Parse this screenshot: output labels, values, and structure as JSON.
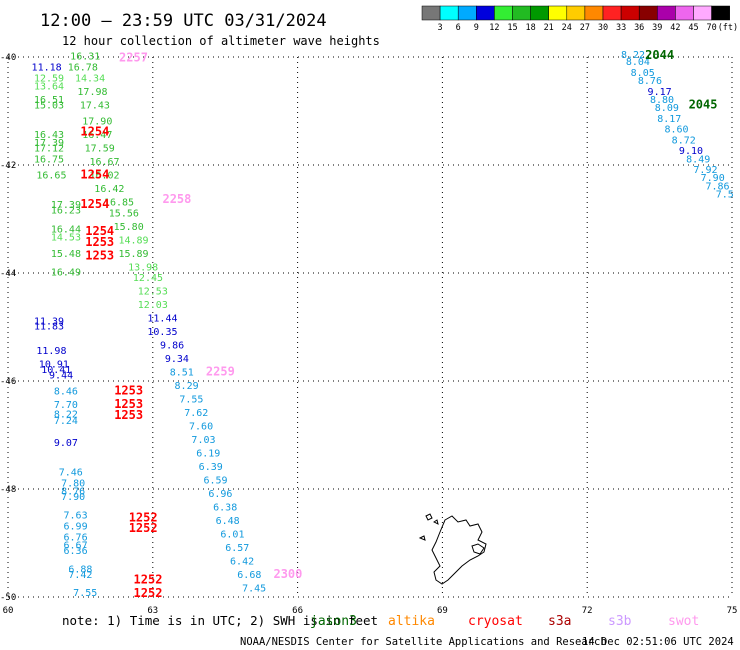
{
  "header": {
    "title": "12:00 — 23:59 UTC 03/31/2024",
    "subtitle": "12 hour collection of altimeter wave heights"
  },
  "colorbar": {
    "labels": [
      "3",
      "6",
      "9",
      "12",
      "15",
      "18",
      "21",
      "24",
      "27",
      "30",
      "33",
      "36",
      "39",
      "42",
      "45",
      "70"
    ],
    "unit": "(ft)",
    "colors": [
      "#777777",
      "#00ffff",
      "#00aaff",
      "#0000dd",
      "#33ee33",
      "#22bb22",
      "#009900",
      "#ffff00",
      "#ffcc00",
      "#ff8800",
      "#ff2222",
      "#cc0000",
      "#880000",
      "#aa00aa",
      "#ee66ee",
      "#ffaaff",
      "#000000"
    ]
  },
  "note": {
    "text": "note: 1) Time is in UTC; 2) SWH is in feet",
    "satellites": [
      {
        "name": "jason3",
        "color": "#006600"
      },
      {
        "name": "altika",
        "color": "#ff8800"
      },
      {
        "name": "cryosat",
        "color": "#ff0000"
      },
      {
        "name": "s3a",
        "color": "#aa0000"
      },
      {
        "name": "s3b",
        "color": "#cc99ff"
      },
      {
        "name": "swot",
        "color": "#ff99ee"
      }
    ]
  },
  "footer": {
    "center": "NOAA/NESDIS Center for Satellite Applications and Research",
    "stamp": "14 Dec 02:51:06 UTC 2024"
  },
  "chart_data": {
    "type": "scatter",
    "x_axis": {
      "min": 60,
      "max": 75,
      "ticks": [
        60,
        63,
        66,
        69,
        72,
        75
      ],
      "tick_labels": [
        "60",
        "63",
        "66",
        "69",
        "72",
        "75"
      ]
    },
    "y_axis": {
      "min": -50,
      "max": -40,
      "ticks": [
        -40,
        -42,
        -44,
        -46,
        -48,
        -50
      ],
      "tick_labels": [
        "-40",
        "-42",
        "-44",
        "-46",
        "-48",
        "-50"
      ]
    },
    "grid": "dotted",
    "color_scale": [
      {
        "max": 3,
        "color": "#777777"
      },
      {
        "max": 6,
        "color": "#00aadd"
      },
      {
        "max": 9,
        "color": "#1199dd"
      },
      {
        "max": 12,
        "color": "#0000cc"
      },
      {
        "max": 15,
        "color": "#55dd55"
      },
      {
        "max": 18,
        "color": "#33bb33"
      },
      {
        "max": 21,
        "color": "#009900"
      }
    ],
    "time_labels": [
      {
        "label": "2257",
        "lon": 62.6,
        "lat": -40.08,
        "sat": "swot"
      },
      {
        "label": "2258",
        "lon": 63.5,
        "lat": -42.7,
        "sat": "swot"
      },
      {
        "label": "2259",
        "lon": 64.4,
        "lat": -45.9,
        "sat": "swot"
      },
      {
        "label": "2300",
        "lon": 65.8,
        "lat": -49.65,
        "sat": "swot"
      },
      {
        "label": "2044",
        "lon": 73.5,
        "lat": -40.04,
        "sat": "jason3"
      },
      {
        "label": "2045",
        "lon": 74.4,
        "lat": -40.95,
        "sat": "jason3"
      },
      {
        "label": "1254",
        "lon": 61.8,
        "lat": -41.45,
        "sat": "cryosat"
      },
      {
        "label": "1254",
        "lon": 61.8,
        "lat": -42.25,
        "sat": "cryosat"
      },
      {
        "label": "1254",
        "lon": 61.8,
        "lat": -42.8,
        "sat": "cryosat"
      },
      {
        "label": "1254",
        "lon": 61.9,
        "lat": -43.3,
        "sat": "cryosat"
      },
      {
        "label": "1253",
        "lon": 61.9,
        "lat": -43.5,
        "sat": "cryosat"
      },
      {
        "label": "1253",
        "lon": 61.9,
        "lat": -43.75,
        "sat": "cryosat"
      },
      {
        "label": "1253",
        "lon": 62.5,
        "lat": -46.25,
        "sat": "cryosat"
      },
      {
        "label": "1253",
        "lon": 62.5,
        "lat": -46.5,
        "sat": "cryosat"
      },
      {
        "label": "1253",
        "lon": 62.5,
        "lat": -46.7,
        "sat": "cryosat"
      },
      {
        "label": "1252",
        "lon": 62.8,
        "lat": -48.6,
        "sat": "cryosat"
      },
      {
        "label": "1252",
        "lon": 62.8,
        "lat": -48.8,
        "sat": "cryosat"
      },
      {
        "label": "1252",
        "lon": 62.9,
        "lat": -49.75,
        "sat": "cryosat"
      },
      {
        "label": "1252",
        "lon": 62.9,
        "lat": -50.0,
        "sat": "cryosat"
      }
    ],
    "swh_points": [
      {
        "v": "16.31",
        "lon": 61.6,
        "lat": -40.05
      },
      {
        "v": "11.18",
        "lon": 60.8,
        "lat": -40.25
      },
      {
        "v": "16.78",
        "lon": 61.55,
        "lat": -40.25
      },
      {
        "v": "12.59",
        "lon": 60.85,
        "lat": -40.45
      },
      {
        "v": "14.34",
        "lon": 61.7,
        "lat": -40.45
      },
      {
        "v": "13.64",
        "lon": 60.85,
        "lat": -40.6
      },
      {
        "v": "17.98",
        "lon": 61.75,
        "lat": -40.7
      },
      {
        "v": "16.51",
        "lon": 60.85,
        "lat": -40.85
      },
      {
        "v": "15.03",
        "lon": 60.85,
        "lat": -40.95
      },
      {
        "v": "17.43",
        "lon": 61.8,
        "lat": -40.95
      },
      {
        "v": "17.90",
        "lon": 61.85,
        "lat": -41.25
      },
      {
        "v": "16.43",
        "lon": 60.85,
        "lat": -41.5
      },
      {
        "v": "16.47",
        "lon": 61.85,
        "lat": -41.5
      },
      {
        "v": "17.39",
        "lon": 60.85,
        "lat": -41.65
      },
      {
        "v": "17.12",
        "lon": 60.85,
        "lat": -41.75
      },
      {
        "v": "17.59",
        "lon": 61.9,
        "lat": -41.75
      },
      {
        "v": "16.75",
        "lon": 60.85,
        "lat": -41.95
      },
      {
        "v": "16.67",
        "lon": 62.0,
        "lat": -42.0
      },
      {
        "v": "16.65",
        "lon": 60.9,
        "lat": -42.25
      },
      {
        "v": "16.02",
        "lon": 62.0,
        "lat": -42.25
      },
      {
        "v": "16.42",
        "lon": 62.1,
        "lat": -42.5
      },
      {
        "v": "17.39",
        "lon": 61.2,
        "lat": -42.8
      },
      {
        "v": "16.85",
        "lon": 62.3,
        "lat": -42.75
      },
      {
        "v": "16.23",
        "lon": 61.2,
        "lat": -42.9
      },
      {
        "v": "15.56",
        "lon": 62.4,
        "lat": -42.95
      },
      {
        "v": "15.80",
        "lon": 62.5,
        "lat": -43.2
      },
      {
        "v": "16.44",
        "lon": 61.2,
        "lat": -43.25
      },
      {
        "v": "14.53",
        "lon": 61.2,
        "lat": -43.4
      },
      {
        "v": "14.89",
        "lon": 62.6,
        "lat": -43.45
      },
      {
        "v": "15.48",
        "lon": 61.2,
        "lat": -43.7
      },
      {
        "v": "15.89",
        "lon": 62.6,
        "lat": -43.7
      },
      {
        "v": "13.98",
        "lon": 62.8,
        "lat": -43.95
      },
      {
        "v": "16.49",
        "lon": 61.2,
        "lat": -44.05
      },
      {
        "v": "12.45",
        "lon": 62.9,
        "lat": -44.15
      },
      {
        "v": "12.53",
        "lon": 63.0,
        "lat": -44.4
      },
      {
        "v": "12.03",
        "lon": 63.0,
        "lat": -44.65
      },
      {
        "v": "11.44",
        "lon": 63.2,
        "lat": -44.9
      },
      {
        "v": "11.39",
        "lon": 60.85,
        "lat": -44.95
      },
      {
        "v": "11.83",
        "lon": 60.85,
        "lat": -45.05
      },
      {
        "v": "10.35",
        "lon": 63.2,
        "lat": -45.15
      },
      {
        "v": "9.86",
        "lon": 63.4,
        "lat": -45.4
      },
      {
        "v": "11.98",
        "lon": 60.9,
        "lat": -45.5
      },
      {
        "v": "9.34",
        "lon": 63.5,
        "lat": -45.65
      },
      {
        "v": "10.91",
        "lon": 60.95,
        "lat": -45.75
      },
      {
        "v": "10.41",
        "lon": 61.0,
        "lat": -45.85
      },
      {
        "v": "8.51",
        "lon": 63.6,
        "lat": -45.9
      },
      {
        "v": "9.44",
        "lon": 61.1,
        "lat": -45.95
      },
      {
        "v": "8.29",
        "lon": 63.7,
        "lat": -46.15
      },
      {
        "v": "8.46",
        "lon": 61.2,
        "lat": -46.25
      },
      {
        "v": "7.55",
        "lon": 63.8,
        "lat": -46.4
      },
      {
        "v": "7.70",
        "lon": 61.2,
        "lat": -46.5
      },
      {
        "v": "7.62",
        "lon": 63.9,
        "lat": -46.65
      },
      {
        "v": "8.22",
        "lon": 61.2,
        "lat": -46.68
      },
      {
        "v": "7.24",
        "lon": 61.2,
        "lat": -46.8
      },
      {
        "v": "7.60",
        "lon": 64.0,
        "lat": -46.9
      },
      {
        "v": "7.03",
        "lon": 64.05,
        "lat": -47.15
      },
      {
        "v": "9.07",
        "lon": 61.2,
        "lat": -47.2
      },
      {
        "v": "6.19",
        "lon": 64.15,
        "lat": -47.4
      },
      {
        "v": "6.39",
        "lon": 64.2,
        "lat": -47.65
      },
      {
        "v": "7.46",
        "lon": 61.3,
        "lat": -47.75
      },
      {
        "v": "6.59",
        "lon": 64.3,
        "lat": -47.9
      },
      {
        "v": "7.80",
        "lon": 61.35,
        "lat": -47.95
      },
      {
        "v": "8.76",
        "lon": 61.35,
        "lat": -48.1
      },
      {
        "v": "6.96",
        "lon": 64.4,
        "lat": -48.15
      },
      {
        "v": "7.90",
        "lon": 61.35,
        "lat": -48.2
      },
      {
        "v": "6.38",
        "lon": 64.5,
        "lat": -48.4
      },
      {
        "v": "7.63",
        "lon": 61.4,
        "lat": -48.55
      },
      {
        "v": "6.48",
        "lon": 64.55,
        "lat": -48.65
      },
      {
        "v": "6.99",
        "lon": 61.4,
        "lat": -48.75
      },
      {
        "v": "6.01",
        "lon": 64.65,
        "lat": -48.9
      },
      {
        "v": "6.76",
        "lon": 61.4,
        "lat": -48.95
      },
      {
        "v": "6.67",
        "lon": 61.4,
        "lat": -49.1
      },
      {
        "v": "6.57",
        "lon": 64.75,
        "lat": -49.15
      },
      {
        "v": "6.36",
        "lon": 61.4,
        "lat": -49.2
      },
      {
        "v": "6.42",
        "lon": 64.85,
        "lat": -49.4
      },
      {
        "v": "6.88",
        "lon": 61.5,
        "lat": -49.55
      },
      {
        "v": "6.68",
        "lon": 65.0,
        "lat": -49.65
      },
      {
        "v": "7.42",
        "lon": 61.5,
        "lat": -49.65
      },
      {
        "v": "7.45",
        "lon": 65.1,
        "lat": -49.9
      },
      {
        "v": "7.55",
        "lon": 61.6,
        "lat": -49.98
      },
      {
        "v": "8.22",
        "lon": 72.95,
        "lat": -40.02
      },
      {
        "v": "8.04",
        "lon": 73.05,
        "lat": -40.15
      },
      {
        "v": "8.05",
        "lon": 73.15,
        "lat": -40.35
      },
      {
        "v": "8.76",
        "lon": 73.3,
        "lat": -40.5
      },
      {
        "v": "9.17",
        "lon": 73.5,
        "lat": -40.7
      },
      {
        "v": "8.80",
        "lon": 73.55,
        "lat": -40.85
      },
      {
        "v": "8.09",
        "lon": 73.65,
        "lat": -41.0
      },
      {
        "v": "8.17",
        "lon": 73.7,
        "lat": -41.2
      },
      {
        "v": "8.60",
        "lon": 73.85,
        "lat": -41.4
      },
      {
        "v": "8.72",
        "lon": 74.0,
        "lat": -41.6
      },
      {
        "v": "9.10",
        "lon": 74.15,
        "lat": -41.8
      },
      {
        "v": "8.49",
        "lon": 74.3,
        "lat": -41.95
      },
      {
        "v": "7.92",
        "lon": 74.45,
        "lat": -42.15
      },
      {
        "v": "7.90",
        "lon": 74.6,
        "lat": -42.3
      },
      {
        "v": "7.86",
        "lon": 74.7,
        "lat": -42.45
      },
      {
        "v": "7.5",
        "lon": 74.85,
        "lat": -42.6
      }
    ]
  }
}
